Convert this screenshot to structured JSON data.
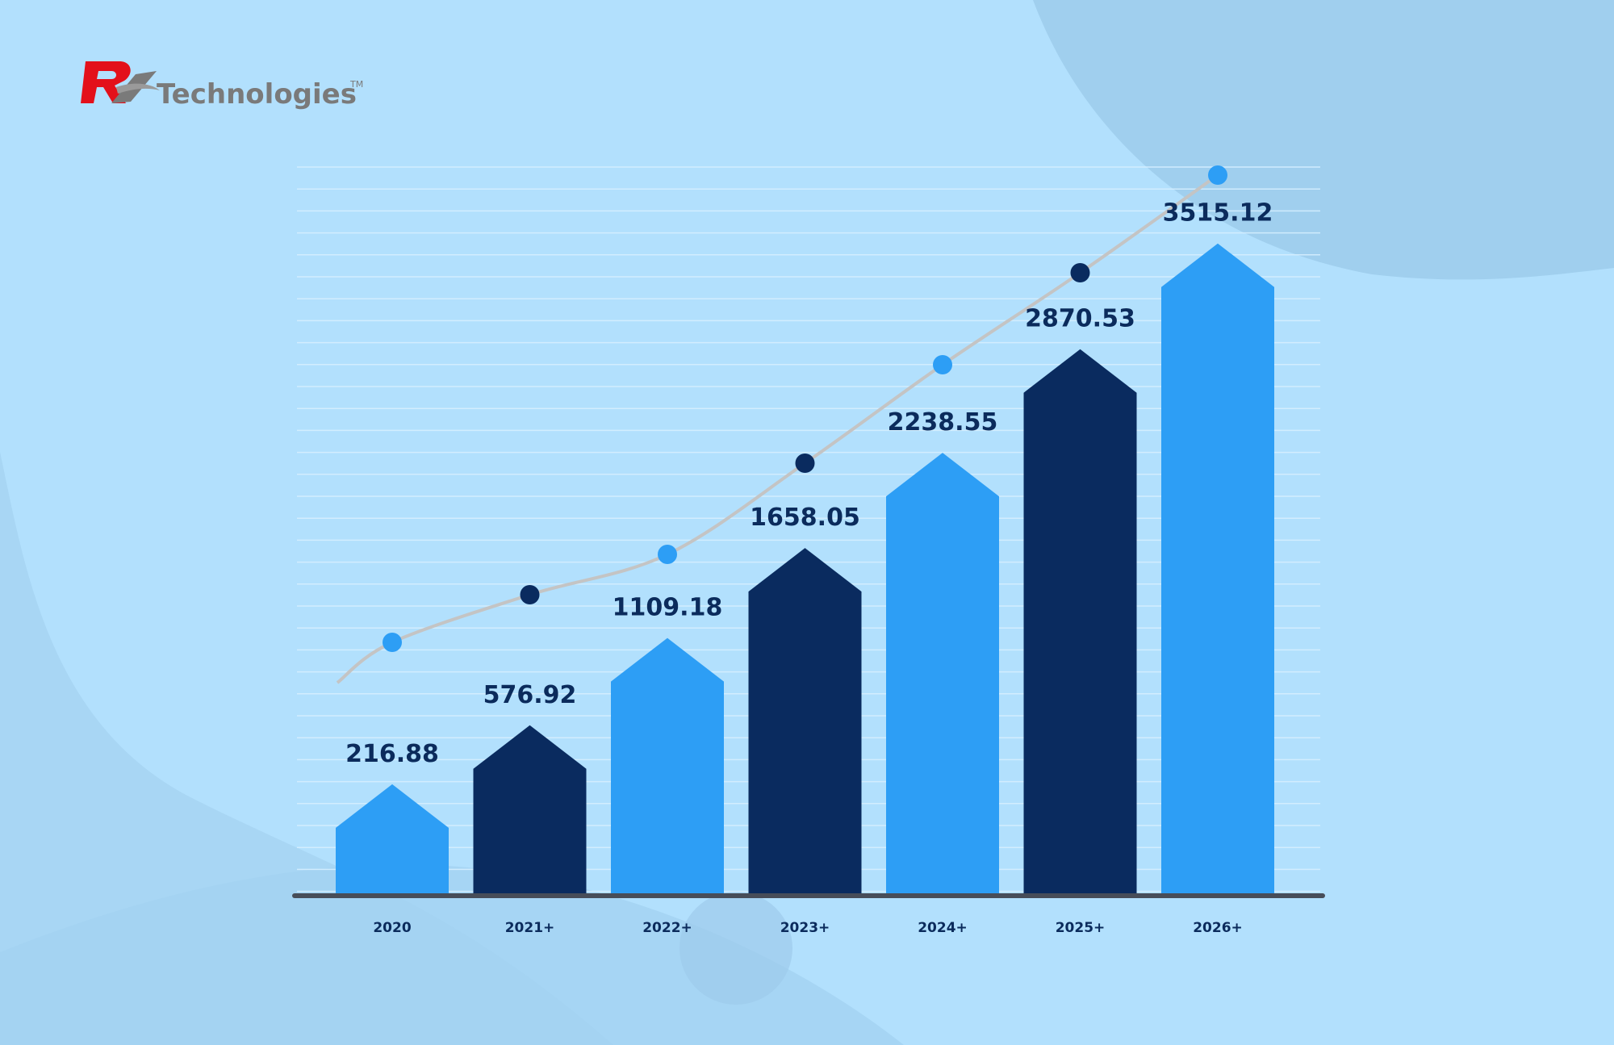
{
  "logo": {
    "text": "Technologies",
    "tm": "TM",
    "mark_color": "#e3101a"
  },
  "colors": {
    "background": "#b2e0fd",
    "bar_light": "#2d9ef5",
    "bar_dark": "#0a2b5f",
    "trend_line": "#c4c4c4",
    "axis": "#474d59",
    "label": "#0b2b5c"
  },
  "chart_data": {
    "type": "bar",
    "categories": [
      "2020",
      "2021+",
      "2022+",
      "2023+",
      "2024+",
      "2025+",
      "2026+"
    ],
    "values": [
      216.88,
      576.92,
      1109.18,
      1658.05,
      2238.55,
      2870.53,
      3515.12
    ],
    "value_labels": [
      "216.88",
      "576.92",
      "1109.18",
      "1658.05",
      "2238.55",
      "2870.53",
      "3515.12"
    ],
    "bar_colors": [
      "light",
      "dark",
      "light",
      "dark",
      "light",
      "dark",
      "light"
    ],
    "trend_line": true,
    "grid": true,
    "title": "",
    "xlabel": "",
    "ylabel": ""
  }
}
